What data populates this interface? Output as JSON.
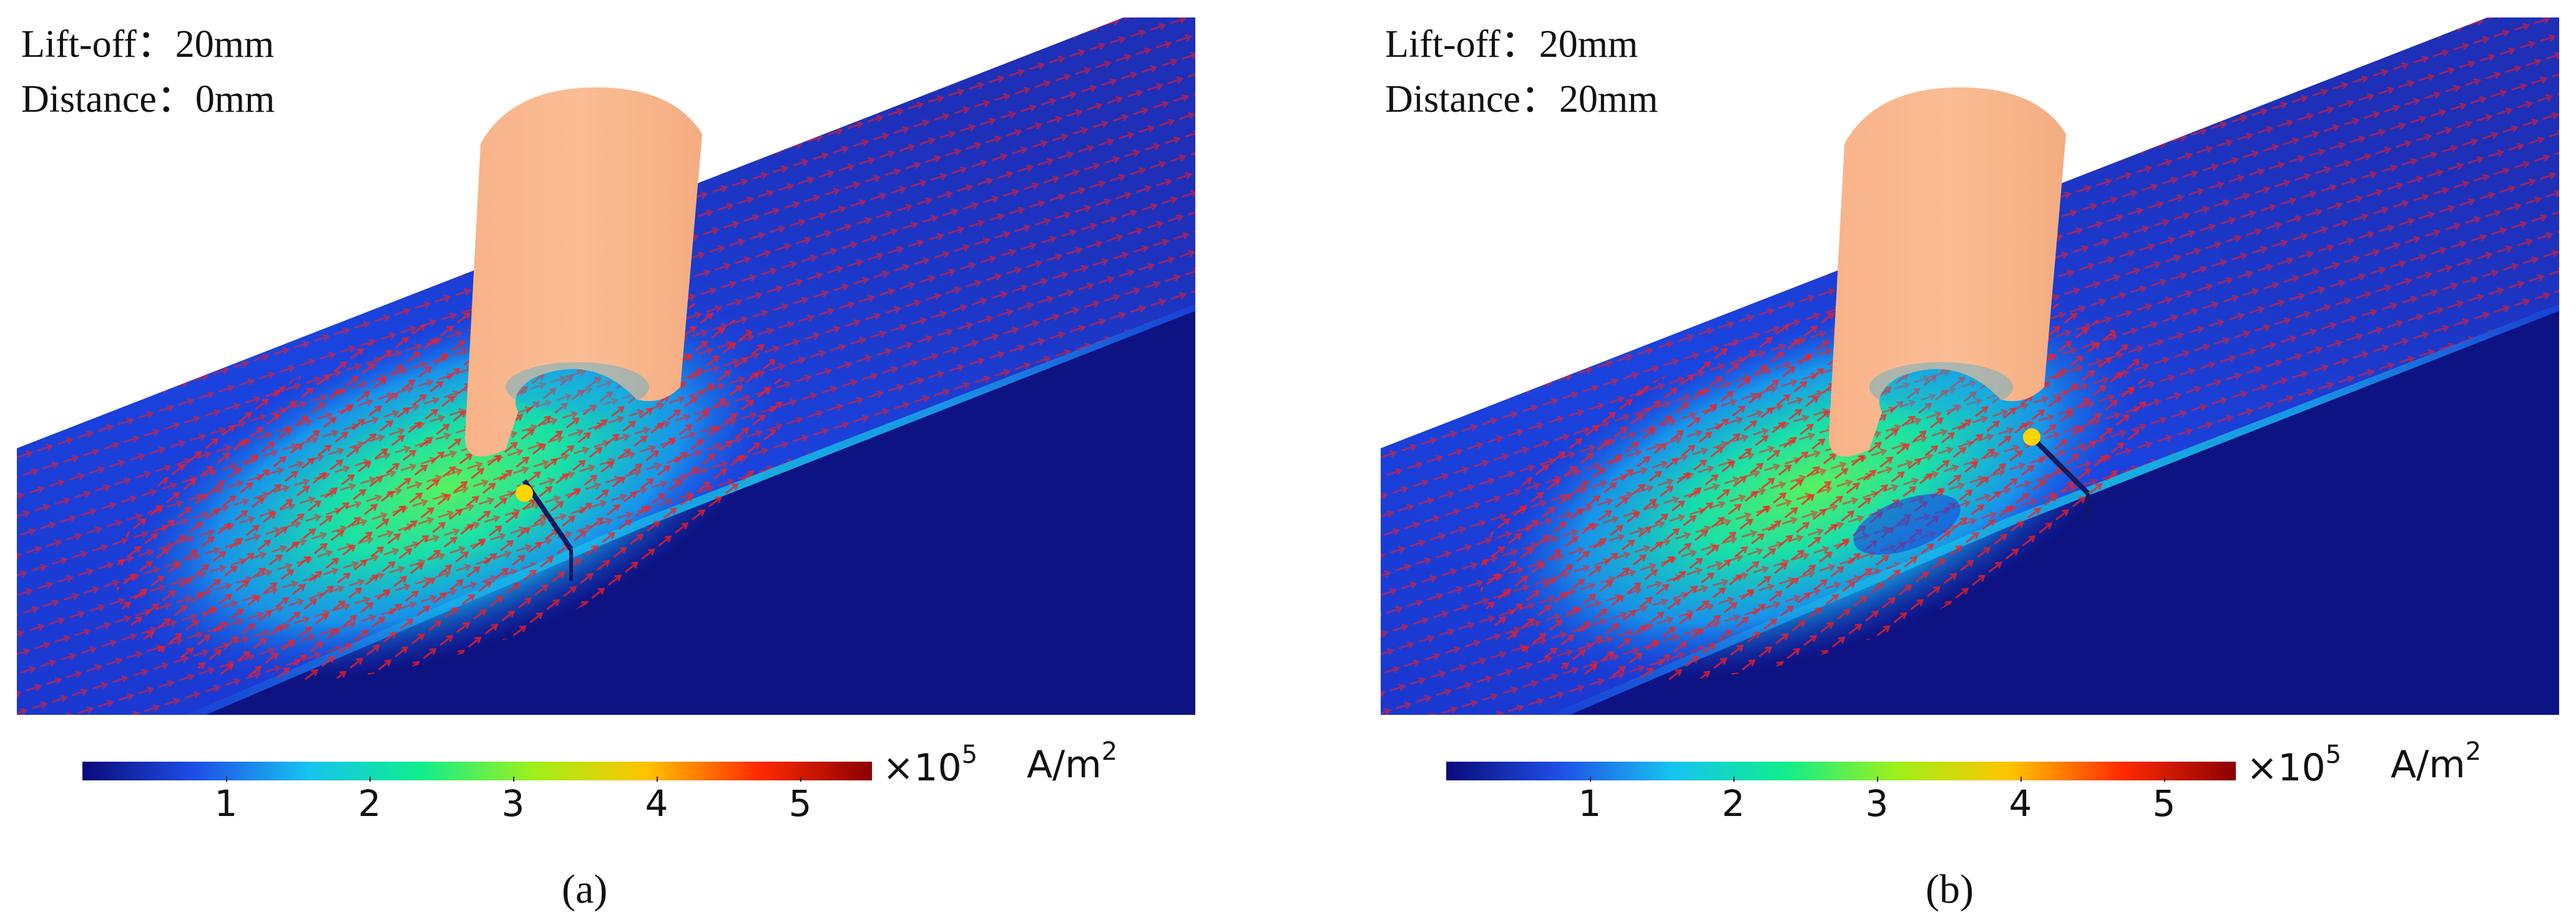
{
  "panels": [
    {
      "id": "a",
      "liftoff": "Lift-off：20mm",
      "distance": "Distance：0mm",
      "sublabel": "(a)"
    },
    {
      "id": "b",
      "liftoff": "Lift-off：20mm",
      "distance": "Distance：20mm",
      "sublabel": "(b)"
    }
  ],
  "colorbar": {
    "ticks": [
      "1",
      "2",
      "3",
      "4",
      "5"
    ],
    "tick_values": [
      1,
      2,
      3,
      4,
      5
    ],
    "range": [
      0,
      5.5
    ],
    "multiplier": "×10",
    "multiplier_exp": "5",
    "unit": "A/m",
    "unit_exp": "2",
    "colors": [
      "#0a0a7a",
      "#1f4fe6",
      "#17c3f0",
      "#10ee8c",
      "#9ef01a",
      "#ffc400",
      "#ff2a00",
      "#8b0000"
    ]
  },
  "colors": {
    "probe": "#fcb88e",
    "arrows": "#ff1a1a",
    "plate_dark": "#0d1383",
    "plate_mid": "#1c3fd8"
  }
}
